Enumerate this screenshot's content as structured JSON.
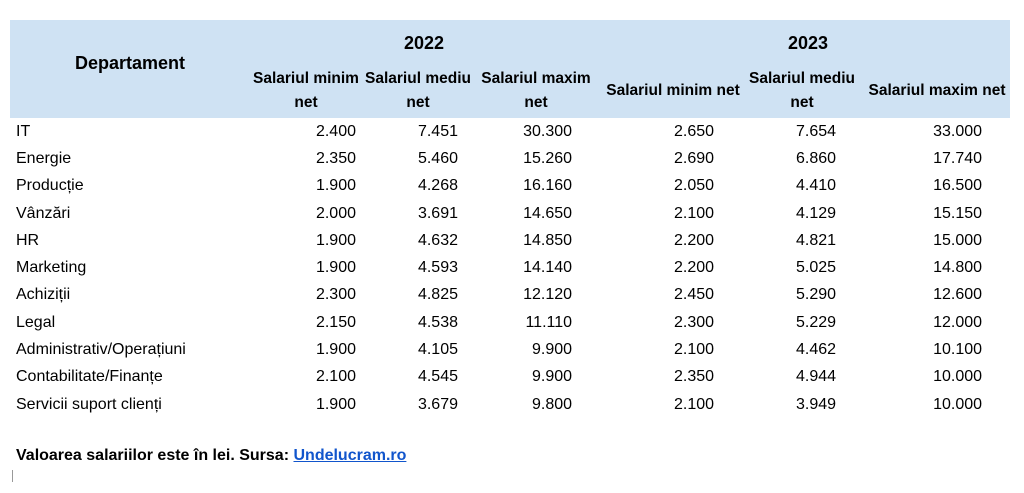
{
  "table": {
    "department_header": "Departament",
    "years": [
      "2022",
      "2023"
    ],
    "subheaders": [
      "Salariul minim net",
      "Salariul mediu net",
      "Salariul maxim net",
      "Salariul minim net",
      "Salariul mediu net",
      "Salariul maxim net"
    ],
    "rows": [
      {
        "department": "IT",
        "values": [
          "2.400",
          "7.451",
          "30.300",
          "2.650",
          "7.654",
          "33.000"
        ]
      },
      {
        "department": "Energie",
        "values": [
          "2.350",
          "5.460",
          "15.260",
          "2.690",
          "6.860",
          "17.740"
        ]
      },
      {
        "department": "Producție",
        "values": [
          "1.900",
          "4.268",
          "16.160",
          "2.050",
          "4.410",
          "16.500"
        ]
      },
      {
        "department": "Vânzări",
        "values": [
          "2.000",
          "3.691",
          "14.650",
          "2.100",
          "4.129",
          "15.150"
        ]
      },
      {
        "department": "HR",
        "values": [
          "1.900",
          "4.632",
          "14.850",
          "2.200",
          "4.821",
          "15.000"
        ]
      },
      {
        "department": "Marketing",
        "values": [
          "1.900",
          "4.593",
          "14.140",
          "2.200",
          "5.025",
          "14.800"
        ]
      },
      {
        "department": "Achiziții",
        "values": [
          "2.300",
          "4.825",
          "12.120",
          "2.450",
          "5.290",
          "12.600"
        ]
      },
      {
        "department": "Legal",
        "values": [
          "2.150",
          "4.538",
          "11.110",
          "2.300",
          "5.229",
          "12.000"
        ]
      },
      {
        "department": "Administrativ/Operațiuni",
        "values": [
          "1.900",
          "4.105",
          "9.900",
          "2.100",
          "4.462",
          "10.100"
        ]
      },
      {
        "department": "Contabilitate/Finanțe",
        "values": [
          "2.100",
          "4.545",
          "9.900",
          "2.350",
          "4.944",
          "10.000"
        ]
      },
      {
        "department": "Servicii suport clienți",
        "values": [
          "1.900",
          "3.679",
          "9.800",
          "2.100",
          "3.949",
          "10.000"
        ]
      }
    ]
  },
  "footnote": {
    "text": "Valoarea salariilor este în lei. Sursa: ",
    "link_text": "Undelucram.ro"
  },
  "colors": {
    "header_background": "#cfe2f3",
    "link": "#1155cc"
  }
}
